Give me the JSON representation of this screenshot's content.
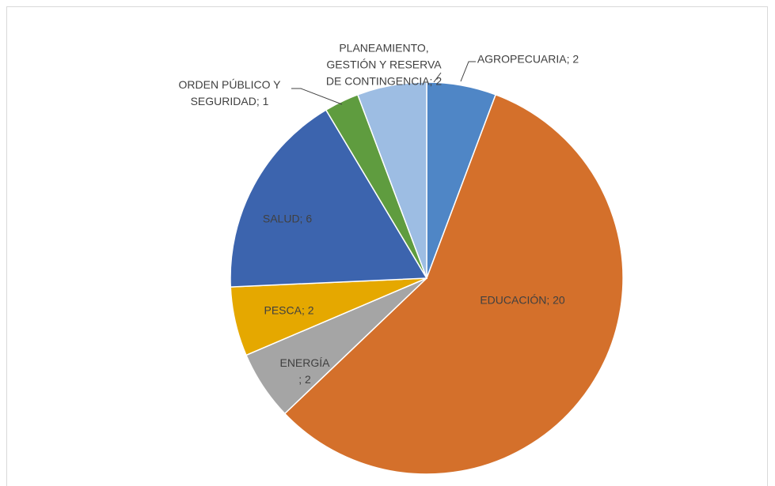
{
  "chart_data": {
    "type": "pie",
    "values": [
      2,
      20,
      2,
      2,
      6,
      1,
      2
    ],
    "value_labels": [
      "AGROPECUARIA; 2",
      "EDUCACIÓN; 20",
      "ENERGÍA ; 2",
      "PESCA; 2",
      "SALUD; 6",
      "ORDEN PÚBLICO Y SEGURIDAD; 1",
      "PLANEAMIENTO, GESTIÓN Y RESERVA DE CONTINGENCIA; 2"
    ],
    "colors": [
      "#4f86c6",
      "#d4702b",
      "#a5a5a5",
      "#e5a800",
      "#3c64ae",
      "#5f9c3f",
      "#9dbde3"
    ]
  }
}
